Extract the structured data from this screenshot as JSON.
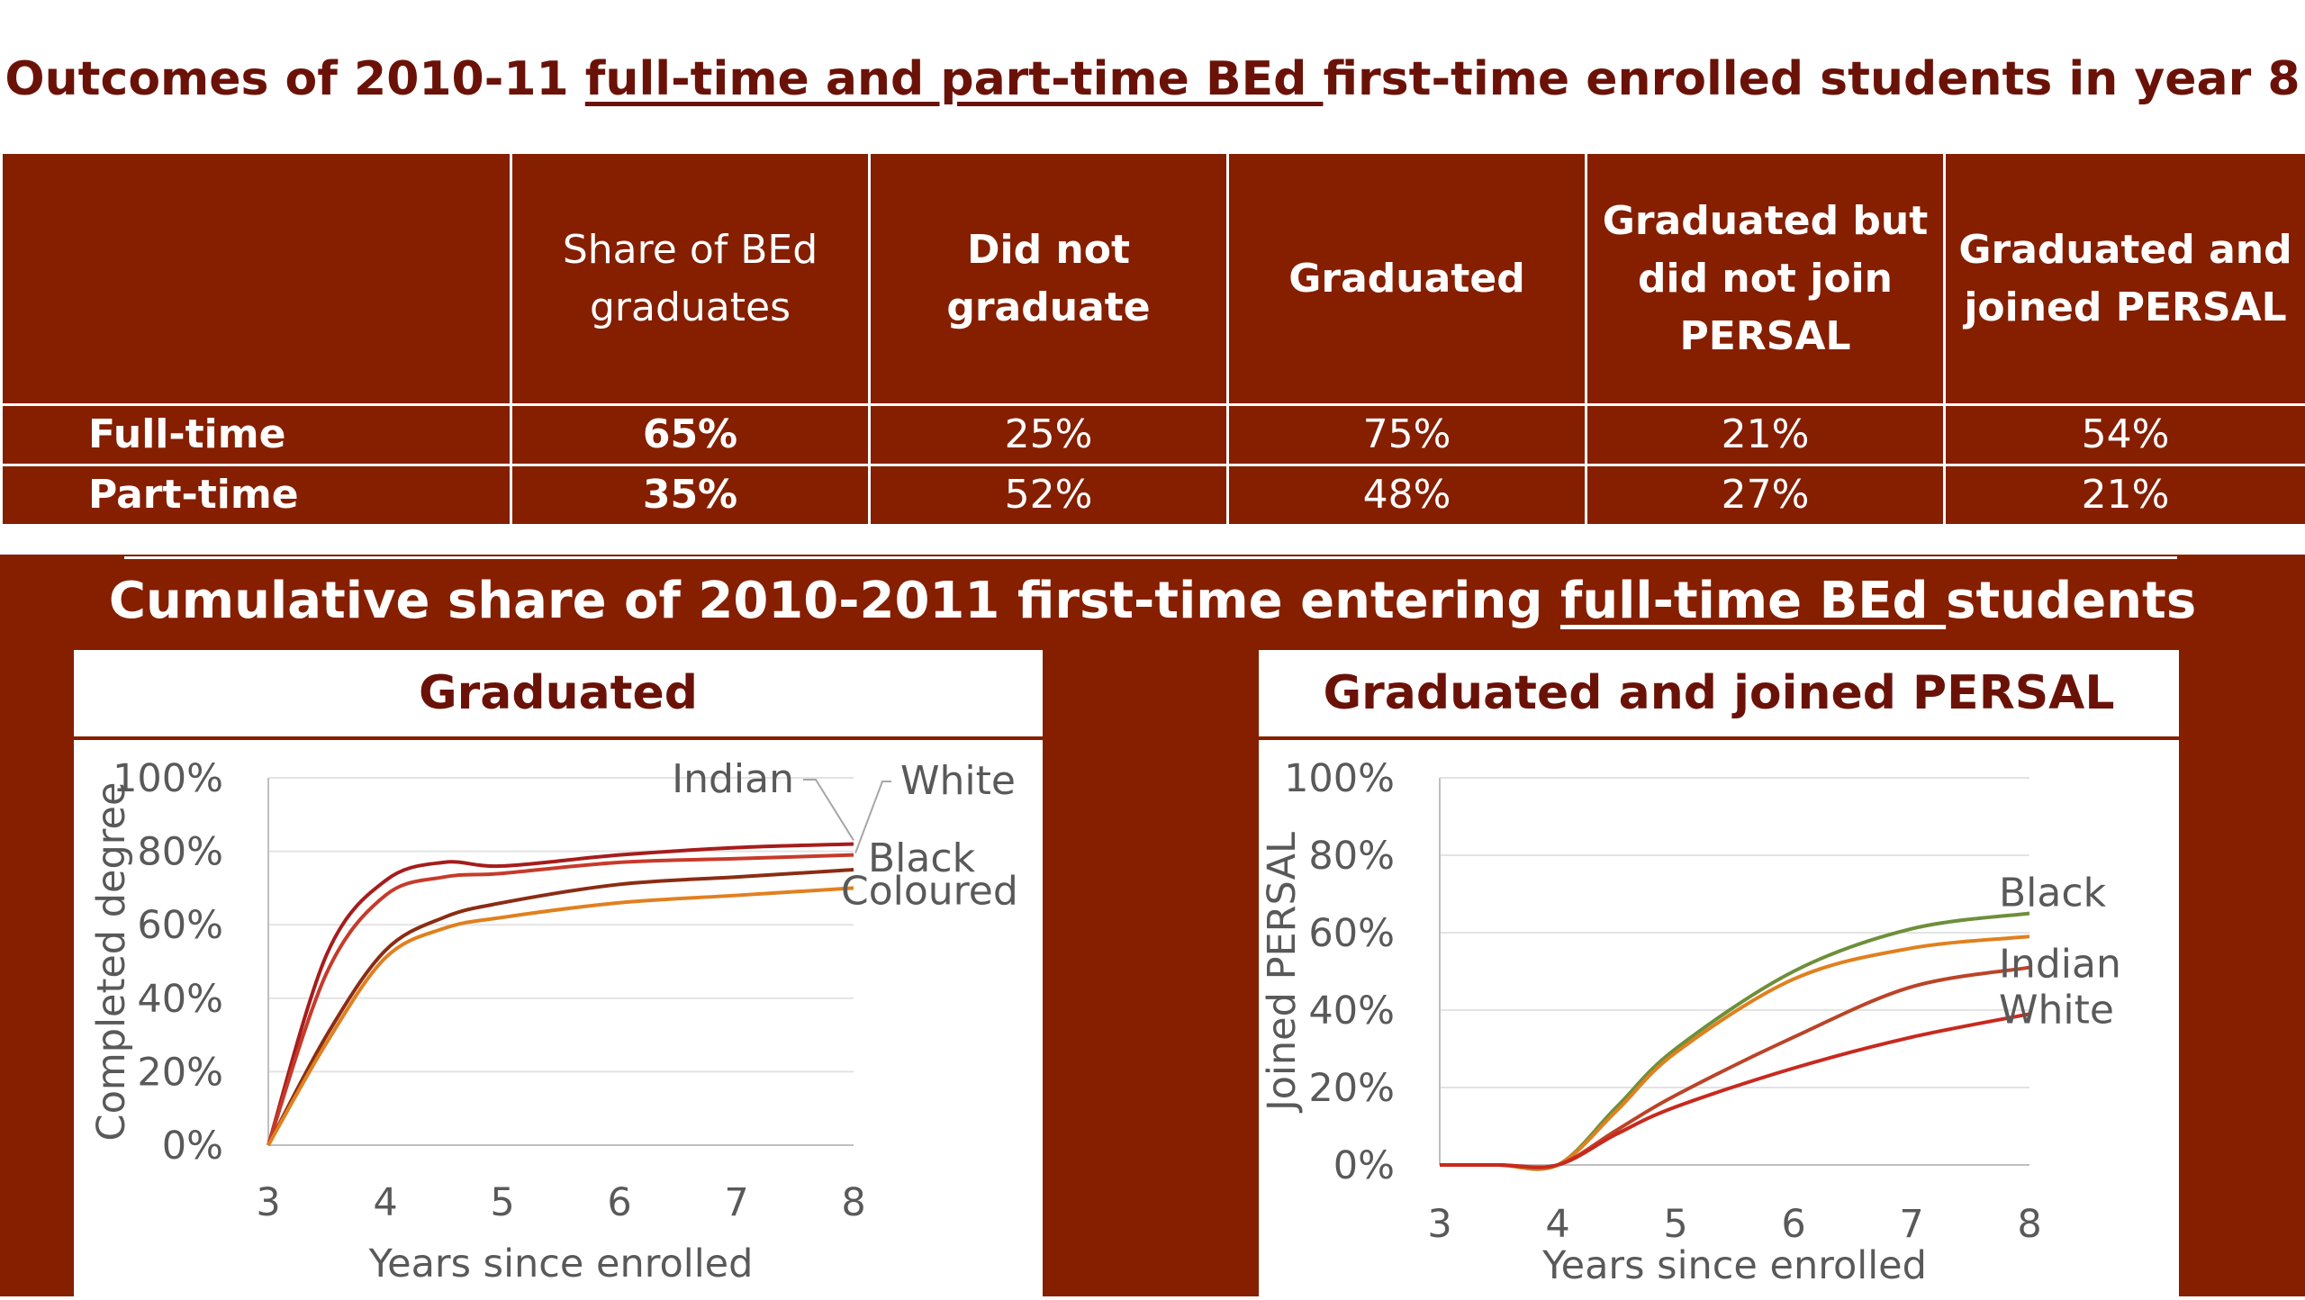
{
  "page": {
    "title_pre": "Outcomes of 2010-11 ",
    "title_underlined": "full-time and part-time BEd ",
    "title_post": "first-time enrolled students in year 8"
  },
  "table": {
    "headers": [
      "",
      "Share of BEd graduates",
      "Did not graduate",
      "Graduated",
      "Graduated but did not join PERSAL",
      "Graduated and joined PERSAL"
    ],
    "rows": [
      {
        "label": "Full-time",
        "share": "65%",
        "did_not_graduate": "25%",
        "graduated": "75%",
        "graduated_not_joined": "21%",
        "graduated_joined": "54%"
      },
      {
        "label": "Part-time",
        "share": "35%",
        "did_not_graduate": "52%",
        "graduated": "48%",
        "graduated_not_joined": "27%",
        "graduated_joined": "21%"
      }
    ]
  },
  "section": {
    "title_pre": "Cumulative share of 2010-2011 first-time entering ",
    "title_underlined": "full-time BEd ",
    "title_post": "students"
  },
  "colors": {
    "header_bg": "#851f00",
    "title": "#6b1208",
    "black": "#6e8f3a",
    "indian": "#e0801f",
    "white": "#c8291e",
    "coloured": "#e0801f",
    "indian_left": "#a61c1c",
    "white_left": "#c73a2a",
    "black_left": "#8b2c14",
    "indian_right": "#ba4427"
  },
  "chart_data": [
    {
      "type": "line",
      "title": "Graduated",
      "xlabel": "Years since enrolled",
      "ylabel": "Completed degree",
      "x": [
        3,
        3.5,
        4,
        4.5,
        5,
        6,
        7,
        8
      ],
      "xticks": [
        "3",
        "4",
        "5",
        "6",
        "7",
        "8"
      ],
      "yticks": [
        "0%",
        "20%",
        "40%",
        "60%",
        "80%",
        "100%"
      ],
      "ylim": [
        0,
        100
      ],
      "grid": true,
      "series": [
        {
          "name": "Indian",
          "values": [
            0,
            52,
            72,
            77,
            76,
            79,
            81,
            82
          ]
        },
        {
          "name": "White",
          "values": [
            0,
            47,
            68,
            73,
            74,
            77,
            78,
            79
          ]
        },
        {
          "name": "Black",
          "values": [
            0,
            30,
            53,
            62,
            66,
            71,
            73,
            75
          ]
        },
        {
          "name": "Coloured",
          "values": [
            0,
            28,
            51,
            59,
            62,
            66,
            68,
            70
          ]
        }
      ]
    },
    {
      "type": "line",
      "title": "Graduated and joined PERSAL",
      "xlabel": "Years since enrolled",
      "ylabel": "Joined PERSAL",
      "x": [
        3,
        3.5,
        4,
        4.5,
        5,
        6,
        7,
        8
      ],
      "xticks": [
        "3",
        "4",
        "5",
        "6",
        "7",
        "8"
      ],
      "yticks": [
        "0%",
        "20%",
        "40%",
        "60%",
        "80%",
        "100%"
      ],
      "ylim": [
        0,
        100
      ],
      "grid": true,
      "series": [
        {
          "name": "Black",
          "values": [
            0,
            0,
            0,
            15,
            30,
            50,
            61,
            65
          ]
        },
        {
          "name": "Indian",
          "values": [
            0,
            0,
            0,
            14,
            29,
            48,
            56,
            59
          ]
        },
        {
          "name": "White",
          "values": [
            0,
            0,
            0,
            9,
            18,
            33,
            46,
            51
          ]
        },
        {
          "name": "",
          "values": [
            0,
            0,
            0,
            8,
            15,
            25,
            33,
            39
          ]
        }
      ]
    }
  ]
}
